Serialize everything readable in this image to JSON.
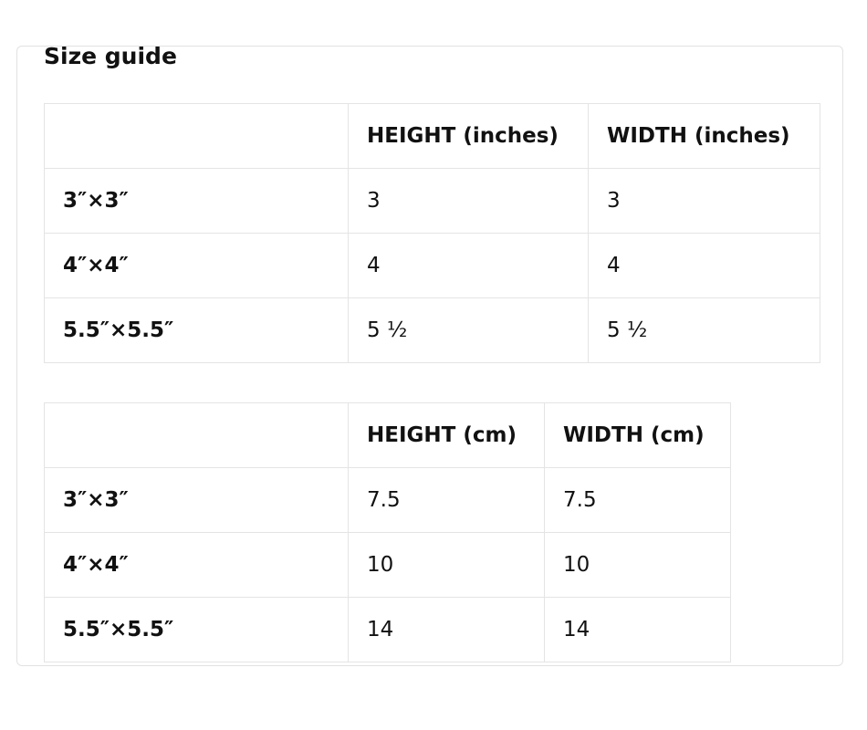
{
  "title": "Size guide",
  "tables": [
    {
      "headers": [
        "",
        "HEIGHT (inches)",
        "WIDTH (inches)"
      ],
      "rows": [
        [
          "3″×3″",
          "3",
          "3"
        ],
        [
          "4″×4″",
          "4",
          "4"
        ],
        [
          "5.5″×5.5″",
          "5 ½",
          "5 ½"
        ]
      ]
    },
    {
      "headers": [
        "",
        "HEIGHT (cm)",
        "WIDTH (cm)"
      ],
      "rows": [
        [
          "3″×3″",
          "7.5",
          "7.5"
        ],
        [
          "4″×4″",
          "10",
          "10"
        ],
        [
          "5.5″×5.5″",
          "14",
          "14"
        ]
      ]
    }
  ]
}
